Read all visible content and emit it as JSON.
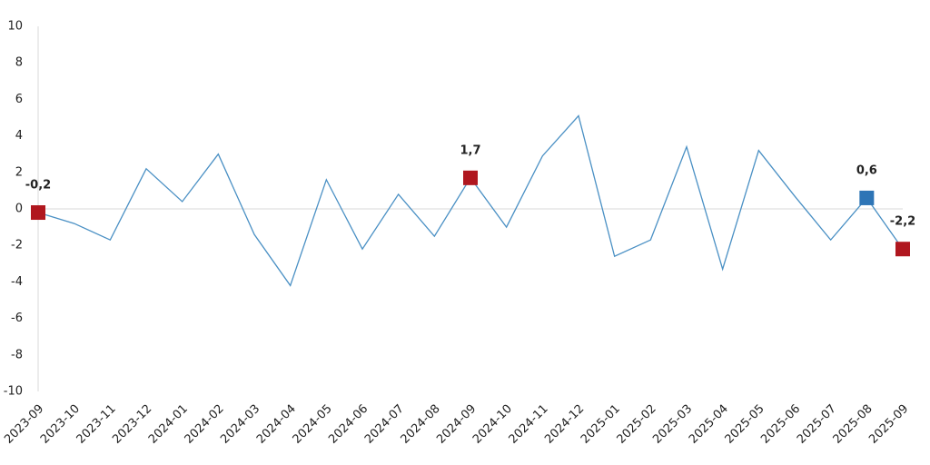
{
  "chart_data": {
    "type": "line",
    "categories": [
      "2023-09",
      "2023-10",
      "2023-11",
      "2023-12",
      "2024-01",
      "2024-02",
      "2024-03",
      "2024-04",
      "2024-05",
      "2024-06",
      "2024-07",
      "2024-08",
      "2024-09",
      "2024-10",
      "2024-11",
      "2024-12",
      "2025-01",
      "2025-02",
      "2025-03",
      "2025-04",
      "2025-05",
      "2025-06",
      "2025-07",
      "2025-08",
      "2025-09"
    ],
    "values": [
      -0.2,
      -0.8,
      -1.7,
      2.2,
      0.4,
      3.0,
      -1.4,
      -4.2,
      1.6,
      -2.2,
      0.8,
      -1.5,
      1.7,
      -1.0,
      2.9,
      5.1,
      -2.6,
      -1.7,
      3.4,
      -3.3,
      3.2,
      0.7,
      -1.7,
      0.6,
      -2.2
    ],
    "value_labels": [
      "-0,2",
      null,
      null,
      null,
      null,
      null,
      null,
      null,
      null,
      null,
      null,
      null,
      "1,7",
      null,
      null,
      null,
      null,
      null,
      null,
      null,
      null,
      null,
      null,
      "0,6",
      "-2,2"
    ],
    "marker_colors": [
      "#b0171f",
      null,
      null,
      null,
      null,
      null,
      null,
      null,
      null,
      null,
      null,
      null,
      "#b0171f",
      null,
      null,
      null,
      null,
      null,
      null,
      null,
      null,
      null,
      null,
      "#2e75b6",
      "#b0171f"
    ],
    "color": "#4a90c4",
    "ylim": [
      -10,
      10
    ],
    "yticks": [
      -10,
      -8,
      -6,
      -4,
      -2,
      0,
      2,
      4,
      6,
      8,
      10
    ],
    "grid": false
  }
}
